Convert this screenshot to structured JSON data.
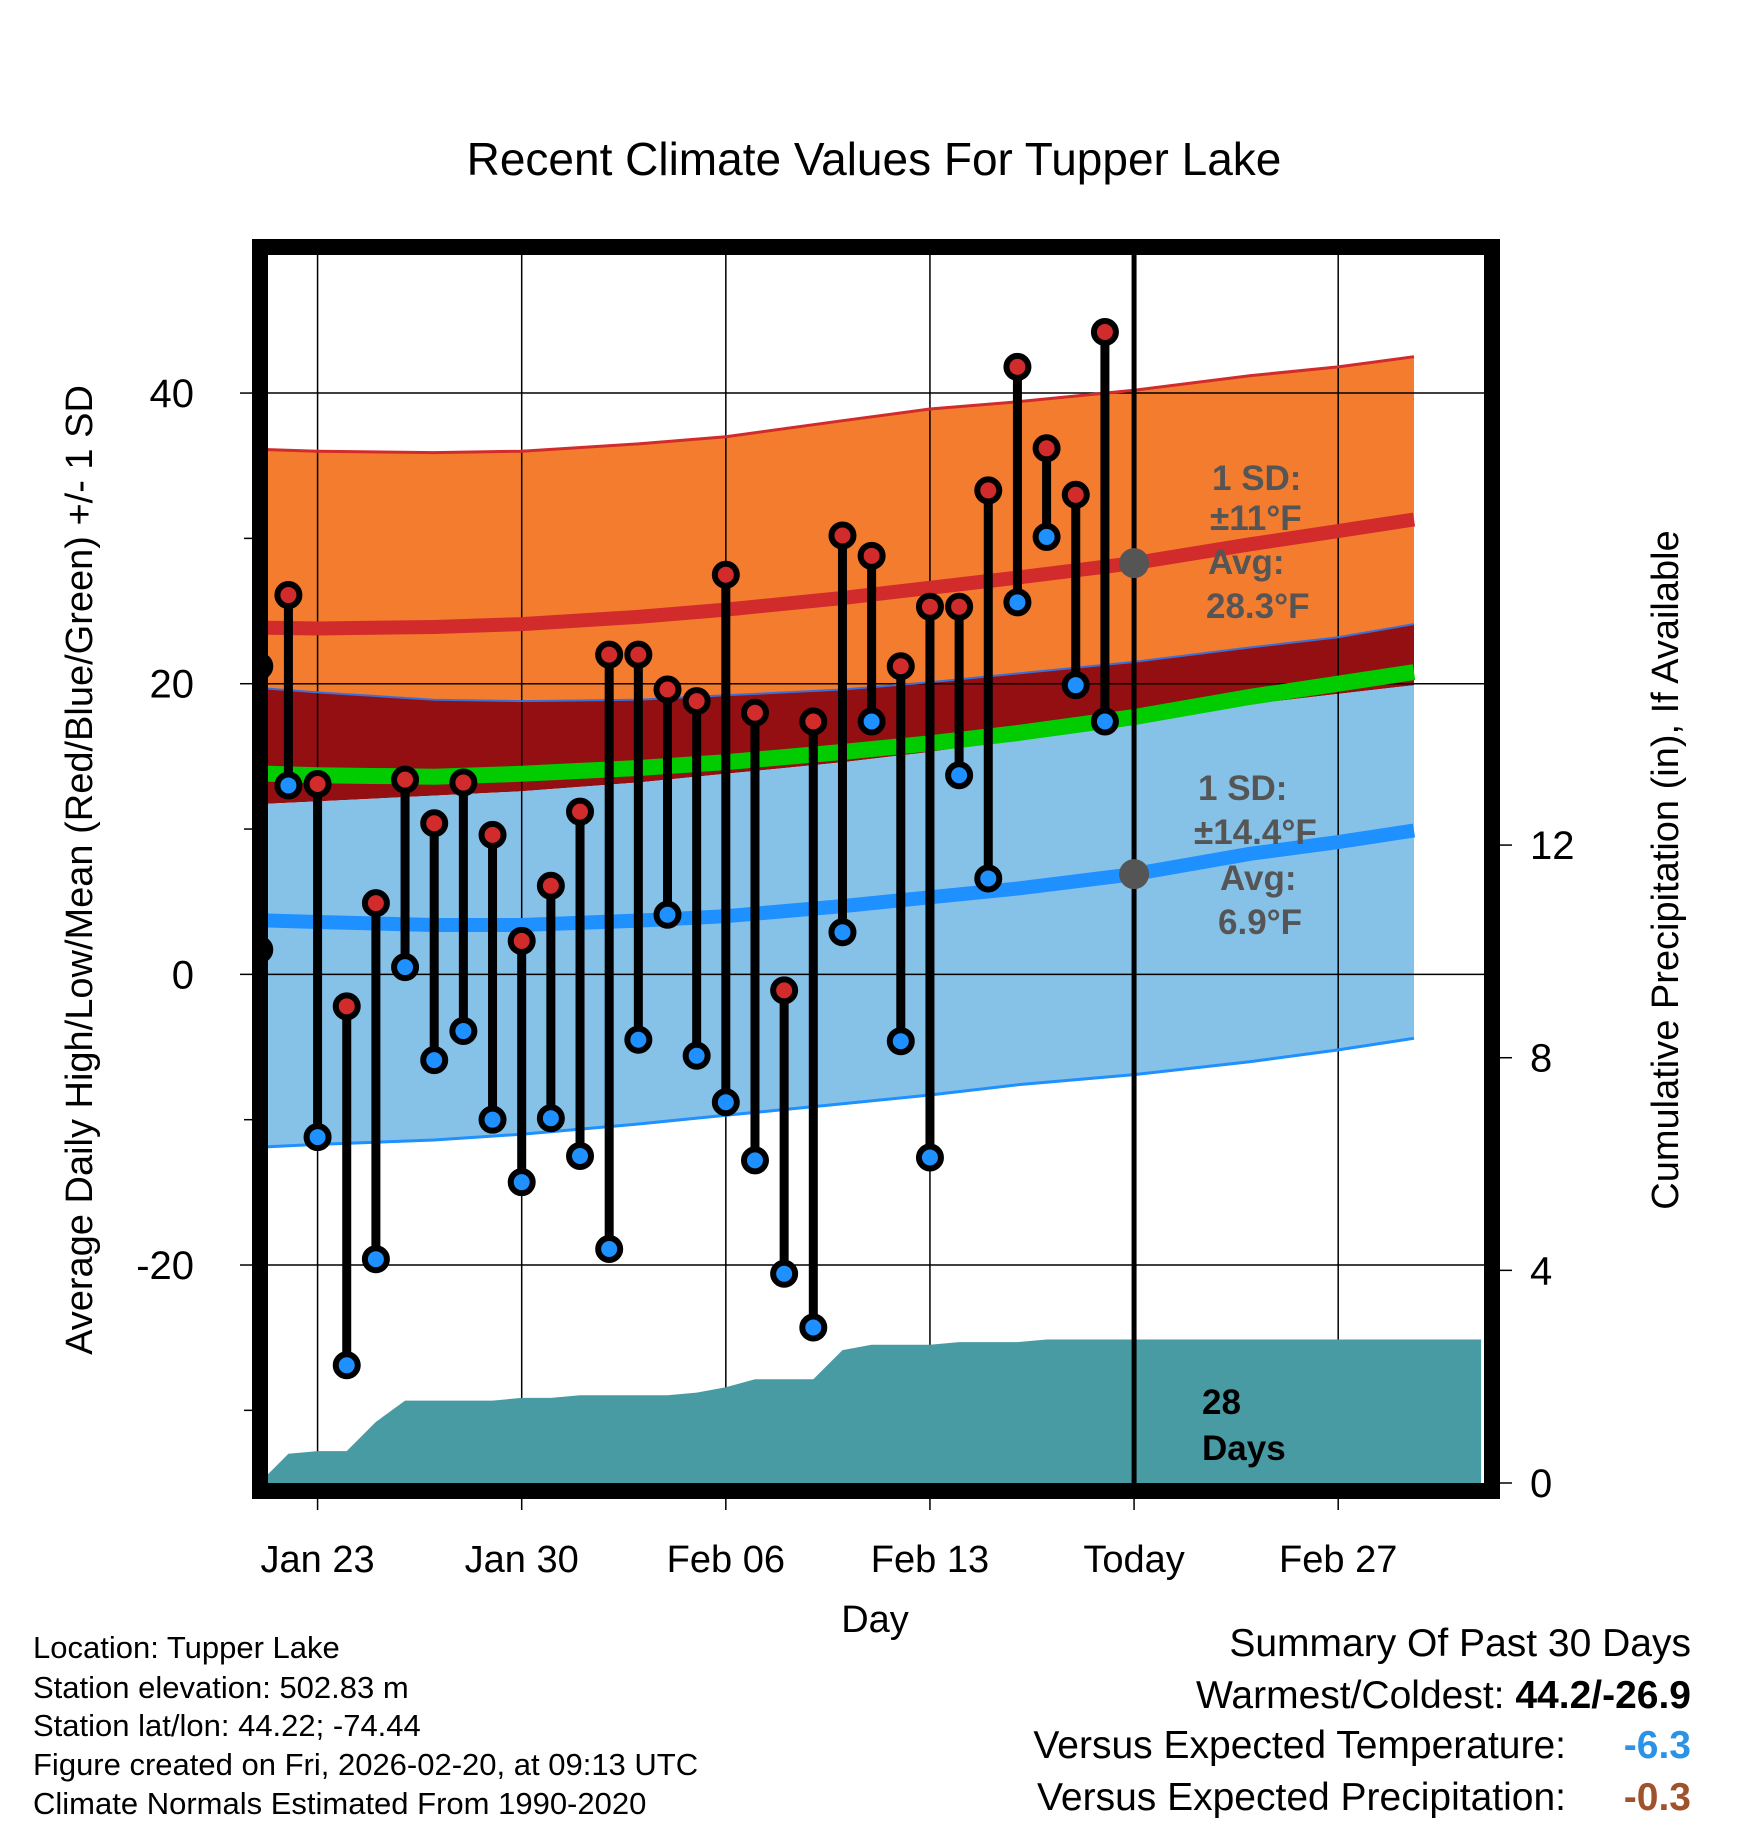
{
  "chart_data": {
    "type": "line",
    "title": "Recent Climate Values For Tupper Lake",
    "xlabel": "Day",
    "ylabel": "Average Daily High/Low/Mean (Red/Blue/Green) +/- 1 SD",
    "y2label": "Cumulative Precipitation (in), If Available",
    "x_day_range": [
      -29.7,
      12.0
    ],
    "ylim": [
      -35,
      49.5
    ],
    "y2lim": [
      0,
      23.1
    ],
    "yticks": [
      -20,
      0,
      20,
      40
    ],
    "yticks_minor": [
      -30,
      -10,
      10,
      30
    ],
    "y2ticks": [
      0,
      4,
      8,
      12
    ],
    "xticks": [
      {
        "day": -28,
        "label": "Jan 23"
      },
      {
        "day": -21,
        "label": "Jan 30"
      },
      {
        "day": -14,
        "label": "Feb 06"
      },
      {
        "day": -7,
        "label": "Feb 13"
      },
      {
        "day": 0,
        "label": "Today"
      },
      {
        "day": 7,
        "label": "Feb 27"
      }
    ],
    "normals_days": [
      -31.2,
      -28,
      -24,
      -21,
      -17,
      -14,
      -10,
      -7,
      -4,
      0,
      4,
      7,
      9.6
    ],
    "normal_high": [
      23.9,
      23.8,
      23.9,
      24.1,
      24.6,
      25.1,
      25.9,
      26.6,
      27.3,
      28.3,
      29.6,
      30.5,
      31.3
    ],
    "normal_high_sd_upper": [
      36.2,
      36.0,
      35.9,
      36.0,
      36.5,
      37.0,
      38.1,
      38.9,
      39.4,
      40.2,
      41.2,
      41.8,
      42.5
    ],
    "normal_high_sd_lower": [
      19.9,
      19.4,
      18.9,
      18.8,
      18.9,
      19.2,
      19.6,
      20.1,
      20.7,
      21.5,
      22.5,
      23.2,
      24.1
    ],
    "normal_mean": [
      13.9,
      13.7,
      13.6,
      13.8,
      14.2,
      14.6,
      15.3,
      15.9,
      16.6,
      17.7,
      19.1,
      20.0,
      20.8
    ],
    "normal_low": [
      3.8,
      3.6,
      3.4,
      3.4,
      3.7,
      4.0,
      4.7,
      5.3,
      5.9,
      6.9,
      8.3,
      9.1,
      9.9
    ],
    "normal_low_sd_upper": [
      11.6,
      11.9,
      12.3,
      12.6,
      13.2,
      13.8,
      14.6,
      15.3,
      16.2,
      17.7,
      18.6,
      19.3,
      19.9
    ],
    "normal_low_sd_lower": [
      -12.0,
      -11.7,
      -11.4,
      -11.0,
      -10.3,
      -9.7,
      -8.9,
      -8.3,
      -7.6,
      -6.9,
      -6.0,
      -5.2,
      -4.4
    ],
    "series": [
      {
        "name": "Daily High",
        "color": "#d12b2b",
        "days": [
          -30,
          -29,
          -28,
          -27,
          -26,
          -25,
          -24,
          -23,
          -22,
          -21,
          -20,
          -19,
          -18,
          -17,
          -16,
          -15,
          -14,
          -13,
          -12,
          -11,
          -10,
          -9,
          -8,
          -7,
          -6,
          -5,
          -4,
          -3,
          -2,
          -1
        ],
        "values": [
          21.2,
          26.1,
          13.1,
          -2.2,
          4.9,
          13.4,
          10.4,
          13.2,
          9.6,
          2.3,
          6.1,
          11.2,
          22.0,
          22.0,
          19.6,
          18.8,
          27.5,
          18.0,
          -1.1,
          17.4,
          30.2,
          28.8,
          21.2,
          25.3,
          25.3,
          33.3,
          41.8,
          36.2,
          33.0,
          44.2
        ]
      },
      {
        "name": "Daily Low",
        "color": "#1e90ff",
        "days": [
          -30,
          -29,
          -28,
          -27,
          -26,
          -25,
          -24,
          -23,
          -22,
          -21,
          -20,
          -19,
          -18,
          -17,
          -16,
          -15,
          -14,
          -13,
          -12,
          -11,
          -10,
          -9,
          -8,
          -7,
          -6,
          -5,
          -4,
          -3,
          -2,
          -1
        ],
        "values": [
          1.7,
          13.0,
          -11.2,
          -26.9,
          -19.6,
          0.5,
          -5.9,
          -3.9,
          -10.0,
          -14.3,
          -9.9,
          -12.5,
          -18.9,
          -4.5,
          4.1,
          -5.6,
          -8.8,
          -12.8,
          -20.6,
          -24.3,
          2.9,
          17.4,
          -4.6,
          -12.6,
          13.7,
          6.6,
          25.6,
          30.1,
          19.9,
          17.4
        ]
      },
      {
        "name": "Cumulative Precipitation (in)",
        "days": [
          -30,
          -29,
          -28,
          -27,
          -26,
          -25,
          -24,
          -23,
          -22,
          -21,
          -20,
          -19,
          -18,
          -17,
          -16,
          -15,
          -14,
          -13,
          -12,
          -11,
          -10,
          -9,
          -8,
          -7,
          -6,
          -5,
          -4,
          -3,
          -2,
          -1,
          0,
          11.9
        ],
        "values": [
          0.0,
          0.55,
          0.6,
          0.6,
          1.15,
          1.55,
          1.55,
          1.55,
          1.55,
          1.6,
          1.6,
          1.65,
          1.65,
          1.65,
          1.65,
          1.7,
          1.8,
          1.95,
          1.95,
          1.95,
          2.5,
          2.6,
          2.6,
          2.6,
          2.65,
          2.65,
          2.65,
          2.7,
          2.7,
          2.7,
          2.7,
          2.7
        ]
      }
    ],
    "annotations": {
      "high_sd": "1 SD:",
      "high_sd_value": "±11°F",
      "high_avg": "Avg:",
      "high_avg_value": "28.3°F",
      "low_sd": "1 SD:",
      "low_sd_value": "±14.4°F",
      "low_avg": "Avg:",
      "low_avg_value": "6.9°F",
      "days_count": "28",
      "days_word": "Days"
    },
    "colors": {
      "high_band": "#f47c2e",
      "high_line": "#d12b2b",
      "mean_band": "#940f12",
      "mean_line": "#00cc00",
      "low_band": "#86c1e8",
      "low_line": "#1e90ff",
      "precip": "#489ba3",
      "annotation": "#555555"
    }
  },
  "info": {
    "location": "Location: Tupper Lake",
    "elevation": "Station elevation: 502.83 m",
    "latlon": "Station lat/lon: 44.22; -74.44",
    "created": "Figure created on Fri, 2026-02-20, at 09:13 UTC",
    "normals": "Climate Normals Estimated From 1990-2020"
  },
  "summary": {
    "title": "Summary Of Past 30 Days",
    "warmest_label": "Warmest/Coldest:",
    "warmest_value": "44.2/-26.9",
    "temp_label": "Versus Expected Temperature:",
    "temp_value": "-6.3",
    "temp_color": "#2a93e8",
    "precip_label": "Versus Expected Precipitation:",
    "precip_value": "-0.3",
    "precip_color": "#a0522d"
  }
}
